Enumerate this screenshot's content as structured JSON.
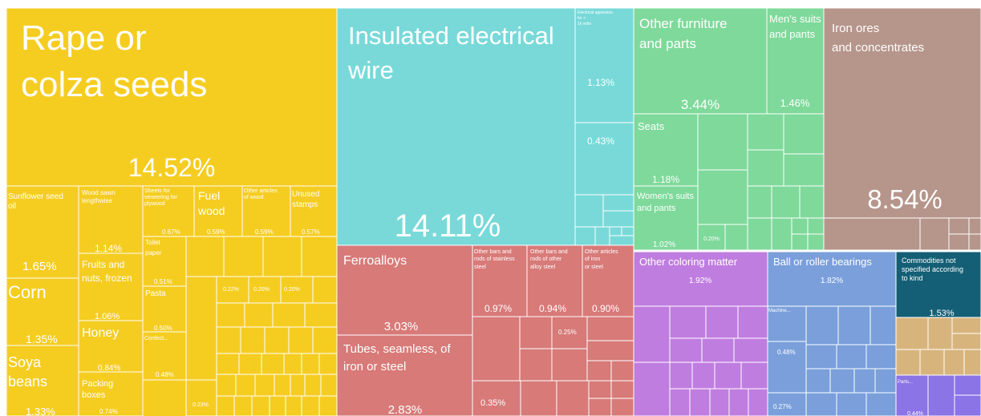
{
  "chart_data": {
    "type": "treemap",
    "colors": {
      "yellow": "#f5cd21",
      "cyan": "#79d9d9",
      "red": "#d77a78",
      "green": "#7fd99b",
      "brown": "#b6958b",
      "purple": "#c07de0",
      "blue": "#7a9fdb",
      "teal": "#145f75",
      "tan": "#d8b47d",
      "lavender": "#8a74e6"
    },
    "tiles": [
      {
        "name": "Rape or colza seeds",
        "value": "14.52%",
        "group": "yellow"
      },
      {
        "name": "Sunflower seed oil",
        "value": "1.65%",
        "group": "yellow"
      },
      {
        "name": "Corn",
        "value": "1.35%",
        "group": "yellow"
      },
      {
        "name": "Soya beans",
        "value": "1.33%",
        "group": "yellow"
      },
      {
        "name": "Wood sawn lengthwise",
        "value": "1.14%",
        "group": "yellow"
      },
      {
        "name": "Fruits and nuts, frozen",
        "value": "1.06%",
        "group": "yellow"
      },
      {
        "name": "Honey",
        "value": "0.84%",
        "group": "yellow"
      },
      {
        "name": "Packing boxes",
        "value": "0.74%",
        "group": "yellow"
      },
      {
        "name": "Sheets for veneering for plywood",
        "value": "0.67%",
        "group": "yellow"
      },
      {
        "name": "Fuel wood",
        "value": "0.59%",
        "group": "yellow"
      },
      {
        "name": "Other articles of wood",
        "value": "0.59%",
        "group": "yellow"
      },
      {
        "name": "Unused stamps",
        "value": "0.57%",
        "group": "yellow"
      },
      {
        "name": "Toilet paper",
        "value": "0.51%",
        "group": "yellow"
      },
      {
        "name": "Pasta",
        "value": "0.50%",
        "group": "yellow"
      },
      {
        "name": "Confect...",
        "value": "0.48%",
        "group": "yellow"
      },
      {
        "name": "",
        "value": "0.22%",
        "group": "yellow"
      },
      {
        "name": "",
        "value": "0.20%",
        "group": "yellow"
      },
      {
        "name": "",
        "value": "0.20%",
        "group": "yellow"
      },
      {
        "name": "",
        "value": "0.23%",
        "group": "yellow"
      },
      {
        "name": "Insulated electrical wire",
        "value": "14.11%",
        "group": "cyan"
      },
      {
        "name": "Electrical apparatus for < 1k volts",
        "value": "1.13%",
        "group": "cyan"
      },
      {
        "name": "",
        "value": "0.43%",
        "group": "cyan"
      },
      {
        "name": "Ferroalloys",
        "value": "3.03%",
        "group": "red"
      },
      {
        "name": "Tubes, seamless, of iron or steel",
        "value": "2.83%",
        "group": "red"
      },
      {
        "name": "Other bars and rods of stainless steel",
        "value": "0.97%",
        "group": "red"
      },
      {
        "name": "Other bars and rods of other alloy steel",
        "value": "0.94%",
        "group": "red"
      },
      {
        "name": "Other articles of iron or steel",
        "value": "0.90%",
        "group": "red"
      },
      {
        "name": "",
        "value": "0.25%",
        "group": "red"
      },
      {
        "name": "",
        "value": "0.35%",
        "group": "red"
      },
      {
        "name": "Other furniture and parts",
        "value": "3.44%",
        "group": "green"
      },
      {
        "name": "Men's suits and pants",
        "value": "1.46%",
        "group": "green"
      },
      {
        "name": "Seats",
        "value": "1.18%",
        "group": "green"
      },
      {
        "name": "Women's suits and pants",
        "value": "1.02%",
        "group": "green"
      },
      {
        "name": "",
        "value": "0.20%",
        "group": "green"
      },
      {
        "name": "Iron ores and concentrates",
        "value": "8.54%",
        "group": "brown"
      },
      {
        "name": "Other coloring matter",
        "value": "1.92%",
        "group": "purple"
      },
      {
        "name": "Ball or roller bearings",
        "value": "1.82%",
        "group": "blue"
      },
      {
        "name": "Machine...",
        "value": "0.48%",
        "group": "blue"
      },
      {
        "name": "",
        "value": "0.27%",
        "group": "blue"
      },
      {
        "name": "Commodities not specified according to kind",
        "value": "1.53%",
        "group": "teal"
      },
      {
        "name": "Parts...",
        "value": "0.44%",
        "group": "lavender"
      }
    ]
  }
}
